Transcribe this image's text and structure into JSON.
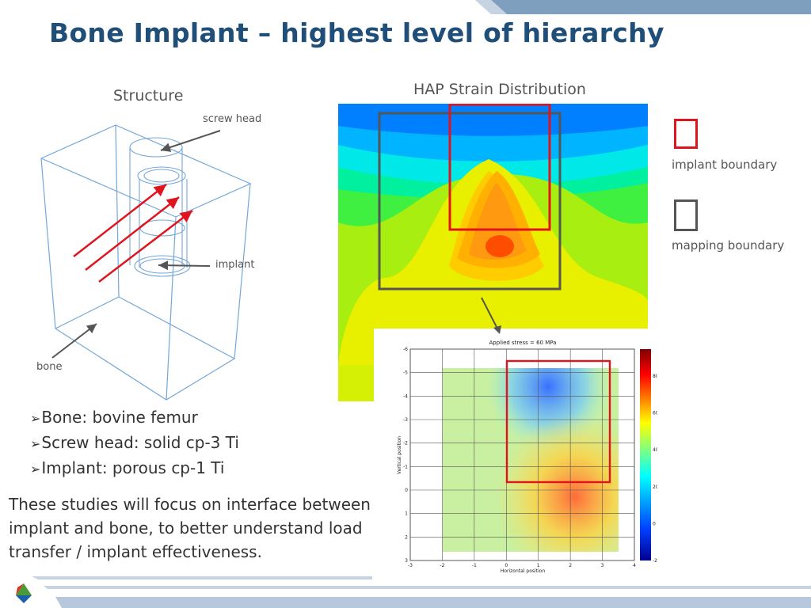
{
  "slide": {
    "title": "Bone Implant – highest level of hierarchy"
  },
  "structure": {
    "heading": "Structure",
    "labels": {
      "screw_head": "screw head",
      "implant": "implant",
      "bone": "bone"
    }
  },
  "hap": {
    "heading": "HAP Strain Distribution"
  },
  "legend": {
    "implant_boundary": "implant boundary",
    "mapping_boundary": "mapping boundary",
    "implant_boundary_color": "#e0141e",
    "mapping_boundary_color": "#555555"
  },
  "bullets": [
    "Bone: bovine femur",
    "Screw head: solid cp-3 Ti",
    "Implant: porous cp-1 Ti"
  ],
  "summary": "These studies will focus on interface between implant and bone, to better understand load transfer / implant effectiveness.",
  "stress_map": {
    "title": "Applied stress = 60 MPa",
    "xlabel": "Horizontal position",
    "ylabel": "Vertical position",
    "x_ticks": [
      "-3",
      "-2",
      "-1",
      "0",
      "1",
      "2",
      "3",
      "4"
    ],
    "y_ticks": [
      "-6",
      "-5",
      "-4",
      "-3",
      "-2",
      "-1",
      "0",
      "1",
      "2",
      "3"
    ],
    "colorbar_ticks": [
      "8000",
      "6000",
      "4000",
      "2000",
      "0",
      "-2000"
    ]
  },
  "icons": {
    "logo": "tri-color-logo-icon",
    "bullet": "arrow-bullet-icon"
  }
}
